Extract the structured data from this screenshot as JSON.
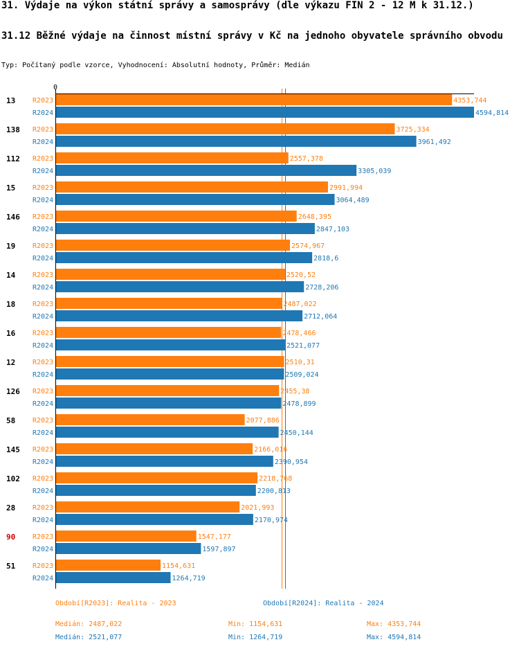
{
  "header": {
    "title": "31. Výdaje na výkon státní správy a samosprávy (dle výkazu FIN 2 - 12 M k 31.12.)",
    "subtitle": "31.12 Běžné výdaje na činnost místní správy v Kč na jednoho obyvatele správního obvodu",
    "type_line": "Typ: Počítaný podle vzorce, Vyhodnocení: Absolutní hodnoty, Průměr: Medián"
  },
  "colors": {
    "r2023": "#ff7f0e",
    "r2024": "#1f77b4",
    "highlight": "#cc0000"
  },
  "chart_data": {
    "type": "bar",
    "orientation": "horizontal",
    "title": "31.12 Běžné výdaje na činnost místní správy v Kč na jednoho obyvatele správního obvodu",
    "axis_zero_label": "0",
    "xlim": [
      0,
      4594.814
    ],
    "categories": [
      "13",
      "138",
      "112",
      "15",
      "146",
      "19",
      "14",
      "18",
      "16",
      "12",
      "126",
      "58",
      "145",
      "102",
      "28",
      "90",
      "51"
    ],
    "highlighted_category": "90",
    "series": [
      {
        "name": "R2023",
        "values": [
          4353.744,
          3725.334,
          2557.378,
          2991.994,
          2648.395,
          2574.967,
          2520.52,
          2487.022,
          2478.466,
          2510.31,
          2455.38,
          2077.886,
          2166.016,
          2218.768,
          2021.993,
          1547.177,
          1154.631
        ],
        "labels": [
          "4353,744",
          "3725,334",
          "2557,378",
          "2991,994",
          "2648,395",
          "2574,967",
          "2520,52",
          "2487,022",
          "2478,466",
          "2510,31",
          "2455,38",
          "2077,886",
          "2166,016",
          "2218,768",
          "2021,993",
          "1547,177",
          "1154,631"
        ]
      },
      {
        "name": "R2024",
        "values": [
          4594.814,
          3961.492,
          3305.039,
          3064.489,
          2847.103,
          2818.6,
          2728.206,
          2712.064,
          2521.077,
          2509.024,
          2478.899,
          2450.144,
          2390.954,
          2200.813,
          2170.974,
          1597.897,
          1264.719
        ],
        "labels": [
          "4594,814",
          "3961,492",
          "3305,039",
          "3064,489",
          "2847,103",
          "2818,6",
          "2728,206",
          "2712,064",
          "2521,077",
          "2509,024",
          "2478,899",
          "2450,144",
          "2390,954",
          "2200,813",
          "2170,974",
          "1597,897",
          "1264,719"
        ]
      }
    ],
    "medians": [
      2487.022,
      2521.077
    ]
  },
  "legend": {
    "r2023_period": "Období[R2023]: Realita - 2023",
    "r2024_period": "Období[R2024]: Realita - 2024",
    "r2023_median": "Medián: 2487,022",
    "r2023_min": "Min: 1154,631",
    "r2023_max": "Max: 4353,744",
    "r2024_median": "Medián: 2521,077",
    "r2024_min": "Min: 1264,719",
    "r2024_max": "Max: 4594,814"
  }
}
